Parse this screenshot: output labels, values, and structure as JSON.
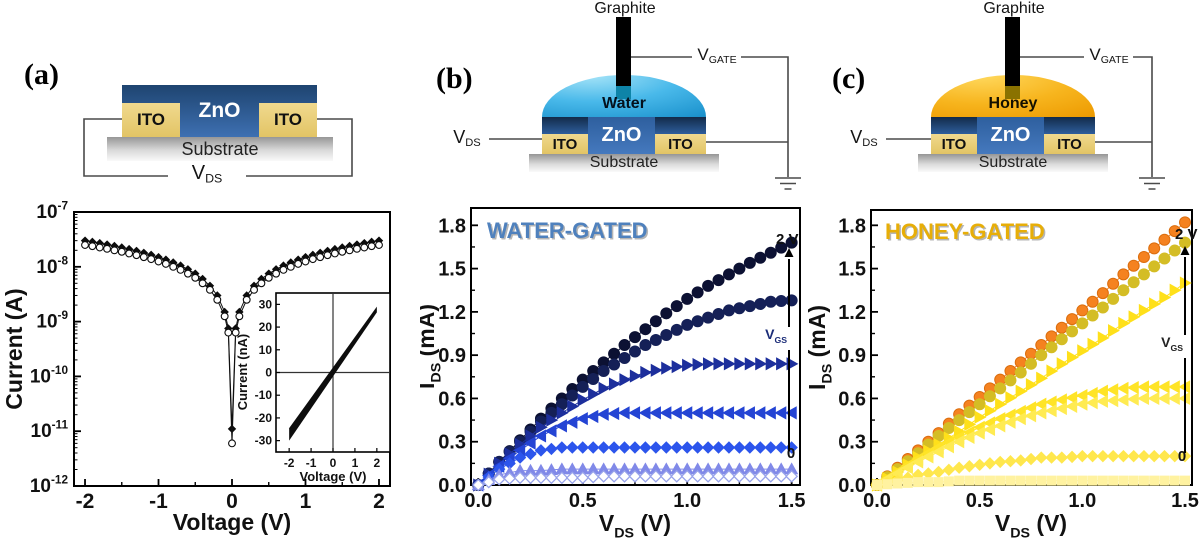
{
  "panels": {
    "a": {
      "tag": "(a)",
      "device": {
        "zno": "ZnO",
        "ito_l": "ITO",
        "ito_r": "ITO",
        "substrate": "Substrate",
        "vds_v": "V",
        "vds_s": "DS"
      }
    },
    "b": {
      "tag": "(b)",
      "device": {
        "electrode": "Graphite",
        "liquid": "Water",
        "zno": "ZnO",
        "ito_l": "ITO",
        "ito_r": "ITO",
        "substrate": "Substrate",
        "vds_v": "V",
        "vds_s": "DS",
        "vg_v": "V",
        "vg_s": "GATE"
      },
      "liquid_color": "#2ea9e0"
    },
    "c": {
      "tag": "(c)",
      "device": {
        "electrode": "Graphite",
        "liquid": "Honey",
        "zno": "ZnO",
        "ito_l": "ITO",
        "ito_r": "ITO",
        "substrate": "Substrate",
        "vds_v": "V",
        "vds_s": "DS",
        "vg_v": "V",
        "vg_s": "GATE"
      },
      "liquid_color": "#f5a607"
    }
  },
  "chart_data": [
    {
      "id": "dark-iv",
      "type": "scatter",
      "x_label": "Voltage (V)",
      "y_label": "Current (A)",
      "x_ticks": [
        -2,
        -1,
        0,
        1,
        2
      ],
      "y_scale": "log",
      "y_tick_exps": [
        -7,
        -8,
        -9,
        -10,
        -11,
        -12
      ],
      "x": [
        -2,
        -1.9,
        -1.8,
        -1.7,
        -1.6,
        -1.5,
        -1.4,
        -1.3,
        -1.2,
        -1.1,
        -1,
        -0.9,
        -0.8,
        -0.7,
        -0.6,
        -0.5,
        -0.4,
        -0.3,
        -0.2,
        -0.1,
        -0.05,
        0,
        0.05,
        0.1,
        0.2,
        0.3,
        0.4,
        0.5,
        0.6,
        0.7,
        0.8,
        0.9,
        1,
        1.1,
        1.2,
        1.3,
        1.4,
        1.5,
        1.6,
        1.7,
        1.8,
        1.9,
        2
      ],
      "series": [
        {
          "name": "sweep-filled",
          "marker": "diamond",
          "color": "#0d0d0d",
          "y": [
            3e-08,
            2.85e-08,
            2.7e-08,
            2.55e-08,
            2.4e-08,
            2.25e-08,
            2.1e-08,
            1.95e-08,
            1.8e-08,
            1.65e-08,
            1.5e-08,
            1.35e-08,
            1.2e-08,
            1.05e-08,
            9e-09,
            7.5e-09,
            6e-09,
            4.5e-09,
            3e-09,
            1.5e-09,
            7.5e-10,
            1.1e-11,
            7.5e-10,
            1.5e-09,
            3e-09,
            4.5e-09,
            6e-09,
            7.5e-09,
            9e-09,
            1.05e-08,
            1.2e-08,
            1.35e-08,
            1.5e-08,
            1.65e-08,
            1.8e-08,
            1.95e-08,
            2.1e-08,
            2.25e-08,
            2.4e-08,
            2.55e-08,
            2.7e-08,
            2.85e-08,
            3e-08
          ]
        },
        {
          "name": "sweep-open",
          "marker": "circle-open",
          "color": "#0d0d0d",
          "fill": "#ffffff",
          "y": [
            2.5e-08,
            2.38e-08,
            2.25e-08,
            2.13e-08,
            2e-08,
            1.88e-08,
            1.75e-08,
            1.63e-08,
            1.5e-08,
            1.38e-08,
            1.25e-08,
            1.13e-08,
            1e-08,
            8.8e-09,
            7.5e-09,
            6.3e-09,
            5e-09,
            3.8e-09,
            2.5e-09,
            1.25e-09,
            6.3e-10,
            6e-12,
            6.3e-10,
            1.25e-09,
            2.5e-09,
            3.8e-09,
            5e-09,
            6.3e-09,
            7.5e-09,
            8.8e-09,
            1e-08,
            1.13e-08,
            1.25e-08,
            1.38e-08,
            1.5e-08,
            1.63e-08,
            1.75e-08,
            1.88e-08,
            2e-08,
            2.13e-08,
            2.25e-08,
            2.38e-08,
            2.5e-08
          ]
        }
      ],
      "inset": {
        "x_label": "Voltage (V)",
        "y_label": "Current (nA)",
        "x_ticks": [
          -2,
          -1,
          0,
          1,
          2
        ],
        "y_ticks": [
          30,
          20,
          10,
          0,
          -10,
          -20,
          -30
        ],
        "band": {
          "x": [
            -2,
            2
          ],
          "y_lower": [
            -30,
            26.5
          ],
          "y_upper": [
            -24.5,
            29
          ]
        }
      }
    },
    {
      "id": "water-gated",
      "type": "scatter",
      "title": "WATER-GATED",
      "title_color": "#4f81bd",
      "x_label": {
        "main": "V",
        "sub": "DS",
        "unit": " (V)"
      },
      "y_label": {
        "main": "I",
        "sub": "DS",
        "unit": " (mA)"
      },
      "x_ticks": [
        "0.0",
        "0.5",
        "1.0",
        "1.5"
      ],
      "y_ticks": [
        "0.0",
        "0.3",
        "0.6",
        "0.9",
        "1.2",
        "1.5",
        "1.8"
      ],
      "x": [
        0,
        0.1,
        0.2,
        0.3,
        0.4,
        0.5,
        0.6,
        0.7,
        0.8,
        0.9,
        1.0,
        1.1,
        1.2,
        1.3,
        1.4,
        1.5
      ],
      "series": [
        {
          "name": "series-1",
          "marker": "circle",
          "color": "#0c1133",
          "y": [
            0,
            0.16,
            0.31,
            0.46,
            0.6,
            0.73,
            0.85,
            0.97,
            1.08,
            1.19,
            1.29,
            1.38,
            1.46,
            1.54,
            1.61,
            1.68
          ]
        },
        {
          "name": "series-2",
          "marker": "circle",
          "color": "#152057",
          "y": [
            0,
            0.16,
            0.3,
            0.44,
            0.56,
            0.68,
            0.79,
            0.88,
            0.97,
            1.04,
            1.11,
            1.16,
            1.21,
            1.24,
            1.27,
            1.28
          ]
        },
        {
          "name": "series-3",
          "marker": "tri-right",
          "color": "#1d2f9c",
          "y": [
            0,
            0.15,
            0.28,
            0.4,
            0.5,
            0.59,
            0.67,
            0.73,
            0.78,
            0.81,
            0.83,
            0.84,
            0.84,
            0.84,
            0.84,
            0.84
          ]
        },
        {
          "name": "series-4",
          "marker": "tri-left",
          "color": "#2444d4",
          "y": [
            0,
            0.13,
            0.24,
            0.34,
            0.41,
            0.46,
            0.49,
            0.5,
            0.5,
            0.5,
            0.5,
            0.5,
            0.5,
            0.5,
            0.5,
            0.5
          ]
        },
        {
          "name": "series-5",
          "marker": "diamond",
          "color": "#2c55ec",
          "y": [
            0,
            0.11,
            0.19,
            0.24,
            0.26,
            0.26,
            0.26,
            0.26,
            0.26,
            0.26,
            0.26,
            0.26,
            0.26,
            0.26,
            0.26,
            0.26
          ]
        },
        {
          "name": "series-6",
          "marker": "tri-up",
          "color": "#8089e8",
          "y": [
            0,
            0.07,
            0.1,
            0.1,
            0.11,
            0.11,
            0.11,
            0.11,
            0.11,
            0.11,
            0.11,
            0.11,
            0.11,
            0.11,
            0.11,
            0.11
          ]
        },
        {
          "name": "series-7",
          "marker": "diamond-open",
          "color": "#98a3ea",
          "fill": "#ffffff",
          "y": [
            0,
            0.04,
            0.05,
            0.05,
            0.05,
            0.05,
            0.06,
            0.06,
            0.06,
            0.06,
            0.06,
            0.06,
            0.06,
            0.06,
            0.06,
            0.06
          ]
        }
      ],
      "annotations": {
        "top_label": "2 V",
        "bottom_label": "0",
        "arrow_label": {
          "main": "V",
          "sub": "GS"
        },
        "arrow_label_color": "#1b2c78"
      }
    },
    {
      "id": "honey-gated",
      "type": "scatter",
      "title": "HONEY-GATED",
      "title_color": "#e7ae08",
      "x_label": {
        "main": "V",
        "sub": "DS",
        "unit": " (V)"
      },
      "y_label": {
        "main": "I",
        "sub": "DS",
        "unit": " (mA)"
      },
      "x_ticks": [
        "0.0",
        "0.5",
        "1.0",
        "1.5"
      ],
      "y_ticks": [
        "0.0",
        "0.3",
        "0.6",
        "0.9",
        "1.2",
        "1.5",
        "1.8"
      ],
      "x": [
        0,
        0.1,
        0.2,
        0.3,
        0.4,
        0.5,
        0.6,
        0.7,
        0.8,
        0.9,
        1.0,
        1.1,
        1.2,
        1.3,
        1.4,
        1.5
      ],
      "series": [
        {
          "name": "series-1",
          "marker": "circle",
          "color": "#f58220",
          "stroke": "#db6d0d",
          "y": [
            0,
            0.12,
            0.24,
            0.36,
            0.49,
            0.61,
            0.73,
            0.85,
            0.97,
            1.09,
            1.21,
            1.33,
            1.46,
            1.58,
            1.7,
            1.82
          ]
        },
        {
          "name": "series-2",
          "marker": "circle",
          "color": "#d4bd25",
          "y": [
            0,
            0.11,
            0.22,
            0.34,
            0.45,
            0.56,
            0.67,
            0.78,
            0.9,
            1.01,
            1.12,
            1.23,
            1.35,
            1.46,
            1.57,
            1.68
          ]
        },
        {
          "name": "series-3",
          "marker": "tri-right",
          "color": "#ffe01a",
          "y": [
            0,
            0.09,
            0.19,
            0.28,
            0.37,
            0.47,
            0.56,
            0.65,
            0.74,
            0.84,
            0.93,
            1.02,
            1.12,
            1.21,
            1.3,
            1.4
          ]
        },
        {
          "name": "series-4",
          "marker": "tri-left",
          "color": "#ffe427",
          "y": [
            0,
            0.09,
            0.18,
            0.26,
            0.33,
            0.4,
            0.46,
            0.51,
            0.56,
            0.59,
            0.62,
            0.65,
            0.67,
            0.68,
            0.68,
            0.68
          ]
        },
        {
          "name": "series-5",
          "marker": "tri-left",
          "color": "#ffeb52",
          "y": [
            0,
            0.08,
            0.16,
            0.23,
            0.3,
            0.36,
            0.41,
            0.46,
            0.5,
            0.53,
            0.56,
            0.58,
            0.59,
            0.6,
            0.6,
            0.6
          ]
        },
        {
          "name": "series-6",
          "marker": "diamond",
          "color": "#ffe74d",
          "y": [
            0,
            0.03,
            0.07,
            0.09,
            0.12,
            0.14,
            0.16,
            0.17,
            0.19,
            0.19,
            0.2,
            0.2,
            0.2,
            0.2,
            0.2,
            0.2
          ]
        },
        {
          "name": "series-7",
          "marker": "square",
          "color": "#fff2a0",
          "y": [
            0,
            0.01,
            0.02,
            0.02,
            0.03,
            0.03,
            0.03,
            0.03,
            0.03,
            0.03,
            0.03,
            0.03,
            0.03,
            0.03,
            0.03,
            0.03
          ]
        }
      ],
      "annotations": {
        "top_label": "2 V",
        "bottom_label": "0",
        "arrow_label": {
          "main": "V",
          "sub": "GS"
        },
        "arrow_label_color": "#222222"
      }
    }
  ]
}
